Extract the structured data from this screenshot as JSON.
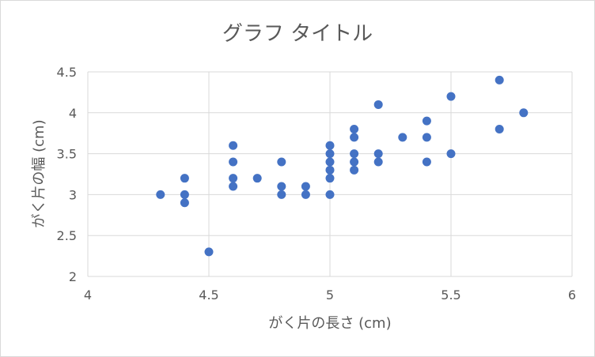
{
  "chart_data": {
    "type": "scatter",
    "title": "グラフ タイトル",
    "xlabel": "がく片の長さ (cm)",
    "ylabel": "がく片の幅 (cm)",
    "xlim": [
      4,
      6
    ],
    "ylim": [
      2,
      4.5
    ],
    "xticks": [
      4,
      4.5,
      5,
      5.5,
      6
    ],
    "yticks": [
      2,
      2.5,
      3,
      3.5,
      4,
      4.5
    ],
    "xtick_labels": [
      "4",
      "4.5",
      "5",
      "5.5",
      "6"
    ],
    "ytick_labels": [
      "2",
      "2.5",
      "3",
      "3.5",
      "4",
      "4.5"
    ],
    "grid": true,
    "legend": "none",
    "marker_color": "#4472c4",
    "points": [
      {
        "x": 4.3,
        "y": 3.0
      },
      {
        "x": 4.4,
        "y": 3.2
      },
      {
        "x": 4.4,
        "y": 3.0
      },
      {
        "x": 4.4,
        "y": 2.9
      },
      {
        "x": 4.5,
        "y": 2.3
      },
      {
        "x": 4.6,
        "y": 3.6
      },
      {
        "x": 4.6,
        "y": 3.4
      },
      {
        "x": 4.6,
        "y": 3.2
      },
      {
        "x": 4.6,
        "y": 3.1
      },
      {
        "x": 4.7,
        "y": 3.2
      },
      {
        "x": 4.8,
        "y": 3.4
      },
      {
        "x": 4.8,
        "y": 3.1
      },
      {
        "x": 4.8,
        "y": 3.0
      },
      {
        "x": 4.9,
        "y": 3.1
      },
      {
        "x": 4.9,
        "y": 3.0
      },
      {
        "x": 5.0,
        "y": 3.6
      },
      {
        "x": 5.0,
        "y": 3.5
      },
      {
        "x": 5.0,
        "y": 3.4
      },
      {
        "x": 5.0,
        "y": 3.3
      },
      {
        "x": 5.0,
        "y": 3.2
      },
      {
        "x": 5.0,
        "y": 3.0
      },
      {
        "x": 5.1,
        "y": 3.8
      },
      {
        "x": 5.1,
        "y": 3.7
      },
      {
        "x": 5.1,
        "y": 3.5
      },
      {
        "x": 5.1,
        "y": 3.4
      },
      {
        "x": 5.1,
        "y": 3.3
      },
      {
        "x": 5.2,
        "y": 4.1
      },
      {
        "x": 5.2,
        "y": 3.5
      },
      {
        "x": 5.2,
        "y": 3.4
      },
      {
        "x": 5.3,
        "y": 3.7
      },
      {
        "x": 5.4,
        "y": 3.9
      },
      {
        "x": 5.4,
        "y": 3.7
      },
      {
        "x": 5.4,
        "y": 3.4
      },
      {
        "x": 5.5,
        "y": 4.2
      },
      {
        "x": 5.5,
        "y": 3.5
      },
      {
        "x": 5.7,
        "y": 4.4
      },
      {
        "x": 5.7,
        "y": 3.8
      },
      {
        "x": 5.8,
        "y": 4.0
      }
    ]
  }
}
